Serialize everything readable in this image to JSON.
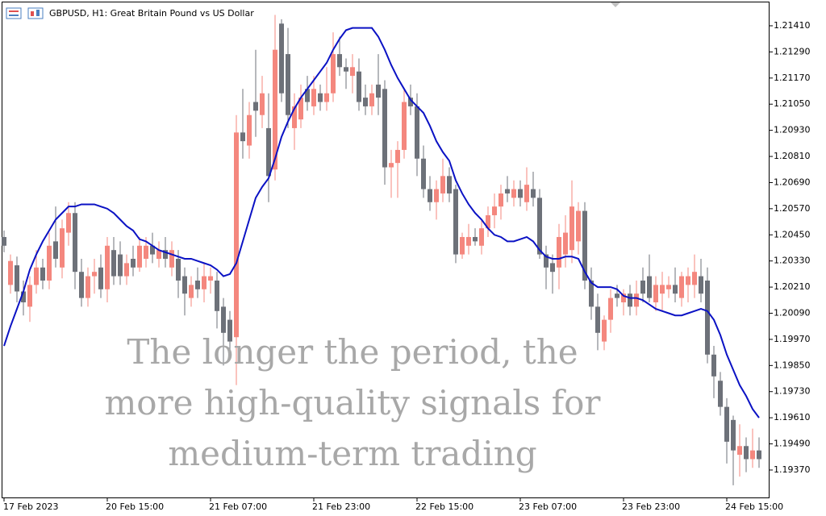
{
  "chart_data": {
    "type": "candlestick",
    "title": "GBPUSD, H1:  Great Britain Pound vs US Dollar",
    "annotation": [
      "The longer the period, the",
      "more high-quality signals for",
      "medium-term trading"
    ],
    "categories": [
      "17 Feb 2023",
      null,
      null,
      null,
      null,
      null,
      null,
      null,
      null,
      null,
      null,
      null,
      null,
      null,
      null,
      null,
      "20 Feb 15:00",
      null,
      null,
      null,
      null,
      null,
      null,
      null,
      null,
      null,
      null,
      null,
      null,
      null,
      null,
      null,
      "21 Feb 07:00",
      null,
      null,
      null,
      null,
      null,
      null,
      null,
      null,
      null,
      null,
      null,
      null,
      null,
      null,
      null,
      "21 Feb 23:00",
      null,
      null,
      null,
      null,
      null,
      null,
      null,
      null,
      null,
      null,
      null,
      null,
      null,
      null,
      null,
      "22 Feb 15:00",
      null,
      null,
      null,
      null,
      null,
      null,
      null,
      null,
      null,
      null,
      null,
      null,
      null,
      null,
      null,
      "23 Feb 07:00",
      null,
      null,
      null,
      null,
      null,
      null,
      null,
      null,
      null,
      null,
      null,
      null,
      null,
      null,
      null,
      "23 Feb 23:00",
      null,
      null,
      null,
      null,
      null,
      null,
      null,
      null,
      null,
      null,
      null,
      null,
      null,
      null,
      null,
      "24 Feb 15:00",
      null,
      null,
      null,
      null,
      null
    ],
    "ohlc": [
      [
        1.2044,
        1.2047,
        1.2037,
        1.204
      ],
      [
        1.2022,
        1.2036,
        1.2018,
        1.2033
      ],
      [
        1.2031,
        1.2035,
        1.2014,
        1.2019
      ],
      [
        1.2019,
        1.2024,
        1.2008,
        1.2014
      ],
      [
        1.2012,
        1.2026,
        1.2005,
        1.2022
      ],
      [
        1.2022,
        1.2038,
        1.2018,
        1.203
      ],
      [
        1.203,
        1.2034,
        1.202,
        1.2024
      ],
      [
        1.2024,
        1.2046,
        1.202,
        1.204
      ],
      [
        1.2042,
        1.2058,
        1.203,
        1.2034
      ],
      [
        1.203,
        1.2052,
        1.2025,
        1.2048
      ],
      [
        1.2046,
        1.206,
        1.204,
        1.2055
      ],
      [
        1.2055,
        1.206,
        1.202,
        1.2028
      ],
      [
        1.2028,
        1.2034,
        1.2012,
        1.2016
      ],
      [
        1.2016,
        1.203,
        1.2012,
        1.2026
      ],
      [
        1.2026,
        1.2034,
        1.2018,
        1.2028
      ],
      [
        1.203,
        1.2036,
        1.2016,
        1.202
      ],
      [
        1.202,
        1.2044,
        1.2014,
        1.204
      ],
      [
        1.2038,
        1.2044,
        1.2022,
        1.2026
      ],
      [
        1.2036,
        1.2042,
        1.2022,
        1.2026
      ],
      [
        1.2026,
        1.2036,
        1.2022,
        1.2032
      ],
      [
        1.2034,
        1.204,
        1.2026,
        1.203
      ],
      [
        1.203,
        1.2044,
        1.2028,
        1.204
      ],
      [
        1.2034,
        1.2044,
        1.203,
        1.204
      ],
      [
        1.204,
        1.2046,
        1.2032,
        1.2036
      ],
      [
        1.2034,
        1.2042,
        1.203,
        1.2038
      ],
      [
        1.2038,
        1.2044,
        1.203,
        1.2034
      ],
      [
        1.203,
        1.2042,
        1.2026,
        1.2038
      ],
      [
        1.2034,
        1.2038,
        1.2016,
        1.2024
      ],
      [
        1.2026,
        1.203,
        1.2008,
        1.2018
      ],
      [
        1.2016,
        1.2026,
        1.2012,
        1.2022
      ],
      [
        1.2024,
        1.203,
        1.2016,
        1.202
      ],
      [
        1.202,
        1.2032,
        1.2014,
        1.2026
      ],
      [
        1.2024,
        1.203,
        1.2018,
        1.2026
      ],
      [
        1.2024,
        1.2028,
        1.2002,
        1.201
      ],
      [
        1.2012,
        1.2016,
        1.1985,
        1.2
      ],
      [
        1.2006,
        1.201,
        1.199,
        1.1996
      ],
      [
        1.1998,
        1.21,
        1.1976,
        1.2092
      ],
      [
        1.2092,
        1.2112,
        1.208,
        1.2088
      ],
      [
        1.2086,
        1.2106,
        1.208,
        1.21
      ],
      [
        1.2106,
        1.213,
        1.209,
        1.2102
      ],
      [
        1.21,
        1.2118,
        1.2094,
        1.211
      ],
      [
        1.2094,
        1.211,
        1.206,
        1.2072
      ],
      [
        1.2075,
        1.2146,
        1.207,
        1.213
      ],
      [
        1.2142,
        1.2144,
        1.2106,
        1.211
      ],
      [
        1.2128,
        1.214,
        1.2094,
        1.21
      ],
      [
        1.2094,
        1.211,
        1.2084,
        1.2104
      ],
      [
        1.2098,
        1.2114,
        1.2094,
        1.2108
      ],
      [
        1.2112,
        1.2118,
        1.2102,
        1.2106
      ],
      [
        1.2104,
        1.2118,
        1.21,
        1.2112
      ],
      [
        1.211,
        1.2114,
        1.2102,
        1.2106
      ],
      [
        1.2106,
        1.2122,
        1.2102,
        1.211
      ],
      [
        1.211,
        1.2138,
        1.2106,
        1.2128
      ],
      [
        1.2128,
        1.2136,
        1.2118,
        1.2122
      ],
      [
        1.2122,
        1.2126,
        1.2112,
        1.212
      ],
      [
        1.2118,
        1.2128,
        1.211,
        1.2122
      ],
      [
        1.212,
        1.2126,
        1.2102,
        1.2106
      ],
      [
        1.2108,
        1.2114,
        1.21,
        1.2104
      ],
      [
        1.2104,
        1.2114,
        1.21,
        1.211
      ],
      [
        1.2114,
        1.2128,
        1.21,
        1.2108
      ],
      [
        1.2112,
        1.2116,
        1.2068,
        1.2076
      ],
      [
        1.2076,
        1.2084,
        1.2062,
        1.2078
      ],
      [
        1.2078,
        1.2088,
        1.2062,
        1.2084
      ],
      [
        1.2084,
        1.2112,
        1.208,
        1.2106
      ],
      [
        1.2108,
        1.2114,
        1.21,
        1.2104
      ],
      [
        1.2104,
        1.211,
        1.2072,
        1.208
      ],
      [
        1.208,
        1.2086,
        1.2062,
        1.2066
      ],
      [
        1.2066,
        1.2072,
        1.2056,
        1.206
      ],
      [
        1.206,
        1.207,
        1.2052,
        1.2066
      ],
      [
        1.2064,
        1.208,
        1.206,
        1.2072
      ],
      [
        1.2072,
        1.2076,
        1.206,
        1.2064
      ],
      [
        1.2066,
        1.2068,
        1.2032,
        1.2036
      ],
      [
        1.2036,
        1.2046,
        1.2034,
        1.2044
      ],
      [
        1.204,
        1.205,
        1.2036,
        1.2044
      ],
      [
        1.2044,
        1.2048,
        1.204,
        1.2042
      ],
      [
        1.204,
        1.2052,
        1.2036,
        1.2048
      ],
      [
        1.2048,
        1.2058,
        1.2044,
        1.2054
      ],
      [
        1.2054,
        1.2064,
        1.2048,
        1.2058
      ],
      [
        1.2058,
        1.2068,
        1.2052,
        1.2064
      ],
      [
        1.2066,
        1.2072,
        1.206,
        1.2064
      ],
      [
        1.2062,
        1.207,
        1.2058,
        1.2066
      ],
      [
        1.2066,
        1.207,
        1.2058,
        1.2062
      ],
      [
        1.206,
        1.2076,
        1.2056,
        1.2068
      ],
      [
        1.2066,
        1.2074,
        1.2058,
        1.2062
      ],
      [
        1.2062,
        1.2066,
        1.2034,
        1.2036
      ],
      [
        1.2036,
        1.204,
        1.202,
        1.203
      ],
      [
        1.2032,
        1.2036,
        1.2018,
        1.2028
      ],
      [
        1.203,
        1.205,
        1.202,
        1.2044
      ],
      [
        1.2036,
        1.2054,
        1.203,
        1.2046
      ],
      [
        1.2038,
        1.207,
        1.2032,
        1.2058
      ],
      [
        1.2042,
        1.206,
        1.2036,
        1.2056
      ],
      [
        1.2056,
        1.206,
        1.202,
        1.2024
      ],
      [
        1.2024,
        1.203,
        1.2006,
        1.2012
      ],
      [
        1.2012,
        1.2018,
        1.1992,
        1.2
      ],
      [
        1.1996,
        1.2008,
        1.1992,
        1.2006
      ],
      [
        1.2006,
        1.202,
        1.2,
        1.2016
      ],
      [
        1.2018,
        1.2022,
        1.2012,
        1.2016
      ],
      [
        1.2014,
        1.202,
        1.2008,
        1.2018
      ],
      [
        1.2018,
        1.2022,
        1.2008,
        1.2012
      ],
      [
        1.2012,
        1.2024,
        1.2008,
        1.2018
      ],
      [
        1.2024,
        1.203,
        1.2014,
        1.2018
      ],
      [
        1.2026,
        1.2036,
        1.2014,
        1.2016
      ],
      [
        1.2014,
        1.2026,
        1.201,
        1.2022
      ],
      [
        1.2018,
        1.2028,
        1.201,
        1.2022
      ],
      [
        1.202,
        1.2026,
        1.2016,
        1.2022
      ],
      [
        1.2022,
        1.203,
        1.2014,
        1.2018
      ],
      [
        1.2016,
        1.2028,
        1.2012,
        1.2026
      ],
      [
        1.2022,
        1.203,
        1.2014,
        1.2026
      ],
      [
        1.2022,
        1.2036,
        1.2016,
        1.2028
      ],
      [
        1.2026,
        1.2034,
        1.2014,
        1.2018
      ],
      [
        1.2024,
        1.203,
        1.1986,
        1.199
      ],
      [
        1.199,
        1.1994,
        1.197,
        1.198
      ],
      [
        1.1978,
        1.1982,
        1.1962,
        1.1966
      ],
      [
        1.1966,
        1.197,
        1.194,
        1.195
      ],
      [
        1.196,
        1.1962,
        1.193,
        1.1946
      ],
      [
        1.1944,
        1.1958,
        1.1934,
        1.1948
      ],
      [
        1.1948,
        1.1952,
        1.1936,
        1.1942
      ],
      [
        1.1942,
        1.1956,
        1.1938,
        1.1946
      ],
      [
        1.1946,
        1.1952,
        1.1938,
        1.1942
      ]
    ],
    "up_color": "#f4877e",
    "down_color": "#6d7179",
    "series": [
      {
        "color": "#0b12c4",
        "values": [
          1.1994,
          1.2003,
          1.2011,
          1.2019,
          1.2029,
          1.2036,
          1.2042,
          1.2047,
          1.2052,
          1.2055,
          1.2058,
          1.2058,
          1.2059,
          1.2059,
          1.2059,
          1.2058,
          1.2057,
          1.2055,
          1.2052,
          1.2049,
          1.2047,
          1.2043,
          1.2042,
          1.204,
          1.2038,
          1.2037,
          1.2036,
          1.2035,
          1.2034,
          1.2034,
          1.2033,
          1.2032,
          1.2031,
          1.2029,
          1.2026,
          1.2027,
          1.2032,
          1.2042,
          1.2052,
          1.2062,
          1.2067,
          1.2071,
          1.208,
          1.209,
          1.2097,
          1.2103,
          1.2108,
          1.2112,
          1.2116,
          1.212,
          1.2124,
          1.213,
          1.2135,
          1.2139,
          1.214,
          1.214,
          1.214,
          1.214,
          1.2136,
          1.213,
          1.2123,
          1.2117,
          1.2112,
          1.2107,
          1.2104,
          1.2101,
          1.2095,
          1.2088,
          1.2083,
          1.2079,
          1.207,
          1.2064,
          1.2059,
          1.2055,
          1.2052,
          1.2048,
          1.2045,
          1.2044,
          1.2042,
          1.2042,
          1.2043,
          1.2044,
          1.2042,
          1.2038,
          1.2035,
          1.2034,
          1.2034,
          1.2035,
          1.2035,
          1.2034,
          1.2028,
          1.2023,
          1.2021,
          1.2021,
          1.2021,
          1.202,
          1.2017,
          1.2016,
          1.2016,
          1.2015,
          1.2013,
          1.2011,
          1.201,
          1.2009,
          1.2008,
          1.2008,
          1.2009,
          1.201,
          1.2011,
          1.201,
          1.2006,
          1.1999,
          1.199,
          1.1983,
          1.1976,
          1.1971,
          1.1965,
          1.1961
        ]
      }
    ],
    "ylim": [
      1.19244,
      1.21521
    ],
    "yticks": [
      {
        "value": 1.2141,
        "label": "1.21410"
      },
      {
        "value": 1.2129,
        "label": "1.21290"
      },
      {
        "value": 1.2117,
        "label": "1.21170"
      },
      {
        "value": 1.2105,
        "label": "1.21050"
      },
      {
        "value": 1.2093,
        "label": "1.20930"
      },
      {
        "value": 1.2081,
        "label": "1.20810"
      },
      {
        "value": 1.2069,
        "label": "1.20690"
      },
      {
        "value": 1.2057,
        "label": "1.20570"
      },
      {
        "value": 1.2045,
        "label": "1.20450"
      },
      {
        "value": 1.2033,
        "label": "1.20330"
      },
      {
        "value": 1.2021,
        "label": "1.20210"
      },
      {
        "value": 1.2009,
        "label": "1.20090"
      },
      {
        "value": 1.1997,
        "label": "1.19970"
      },
      {
        "value": 1.1985,
        "label": "1.19850"
      },
      {
        "value": 1.1973,
        "label": "1.19730"
      },
      {
        "value": 1.1961,
        "label": "1.19610"
      },
      {
        "value": 1.1949,
        "label": "1.19490"
      },
      {
        "value": 1.1937,
        "label": "1.19370"
      }
    ],
    "grid": false
  }
}
